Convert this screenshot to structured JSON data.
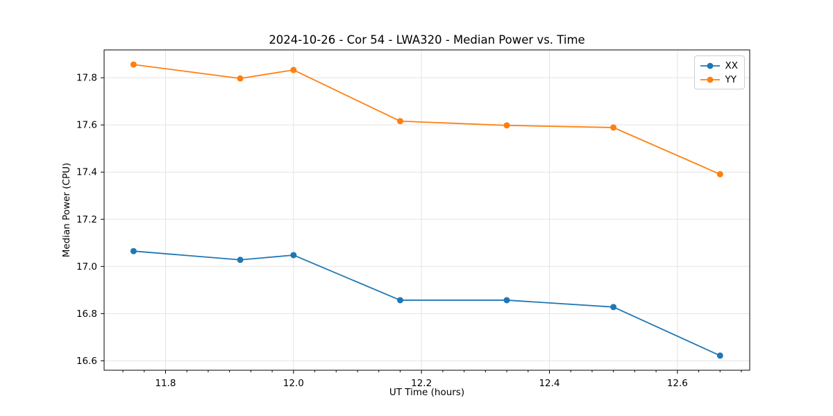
{
  "chart_data": {
    "type": "line",
    "title": "2024-10-26 - Cor 54 - LWA320 - Median Power vs. Time",
    "xlabel": "UT Time (hours)",
    "ylabel": "Median Power (CPU)",
    "x": [
      11.75,
      11.9167,
      12.0,
      12.1667,
      12.3333,
      12.5,
      12.6667
    ],
    "series": [
      {
        "name": "XX",
        "color": "#1f77b4",
        "values": [
          17.065,
          17.028,
          17.048,
          16.857,
          16.857,
          16.828,
          16.622
        ]
      },
      {
        "name": "YY",
        "color": "#ff7f0e",
        "values": [
          17.856,
          17.797,
          17.833,
          17.616,
          17.598,
          17.589,
          17.391
        ]
      }
    ],
    "x_ticks": {
      "values": [
        11.8,
        12.0,
        12.2,
        12.4,
        12.6
      ],
      "labels": [
        "11.8",
        "12.0",
        "12.2",
        "12.4",
        "12.6"
      ]
    },
    "y_ticks": {
      "values": [
        16.6,
        16.8,
        17.0,
        17.2,
        17.4,
        17.6,
        17.8
      ],
      "labels": [
        "16.6",
        "16.8",
        "17.0",
        "17.2",
        "17.4",
        "17.6",
        "17.8"
      ]
    },
    "xlim": [
      11.704,
      12.713
    ],
    "ylim": [
      16.56,
      17.918
    ],
    "x_minor_step": 0.0333333,
    "grid": true,
    "legend": {
      "position": "upper right",
      "entries": [
        "XX",
        "YY"
      ]
    },
    "colors": {
      "grid": "#e3e3e3",
      "spine": "#000000",
      "background": "#ffffff",
      "text": "#000000"
    }
  }
}
